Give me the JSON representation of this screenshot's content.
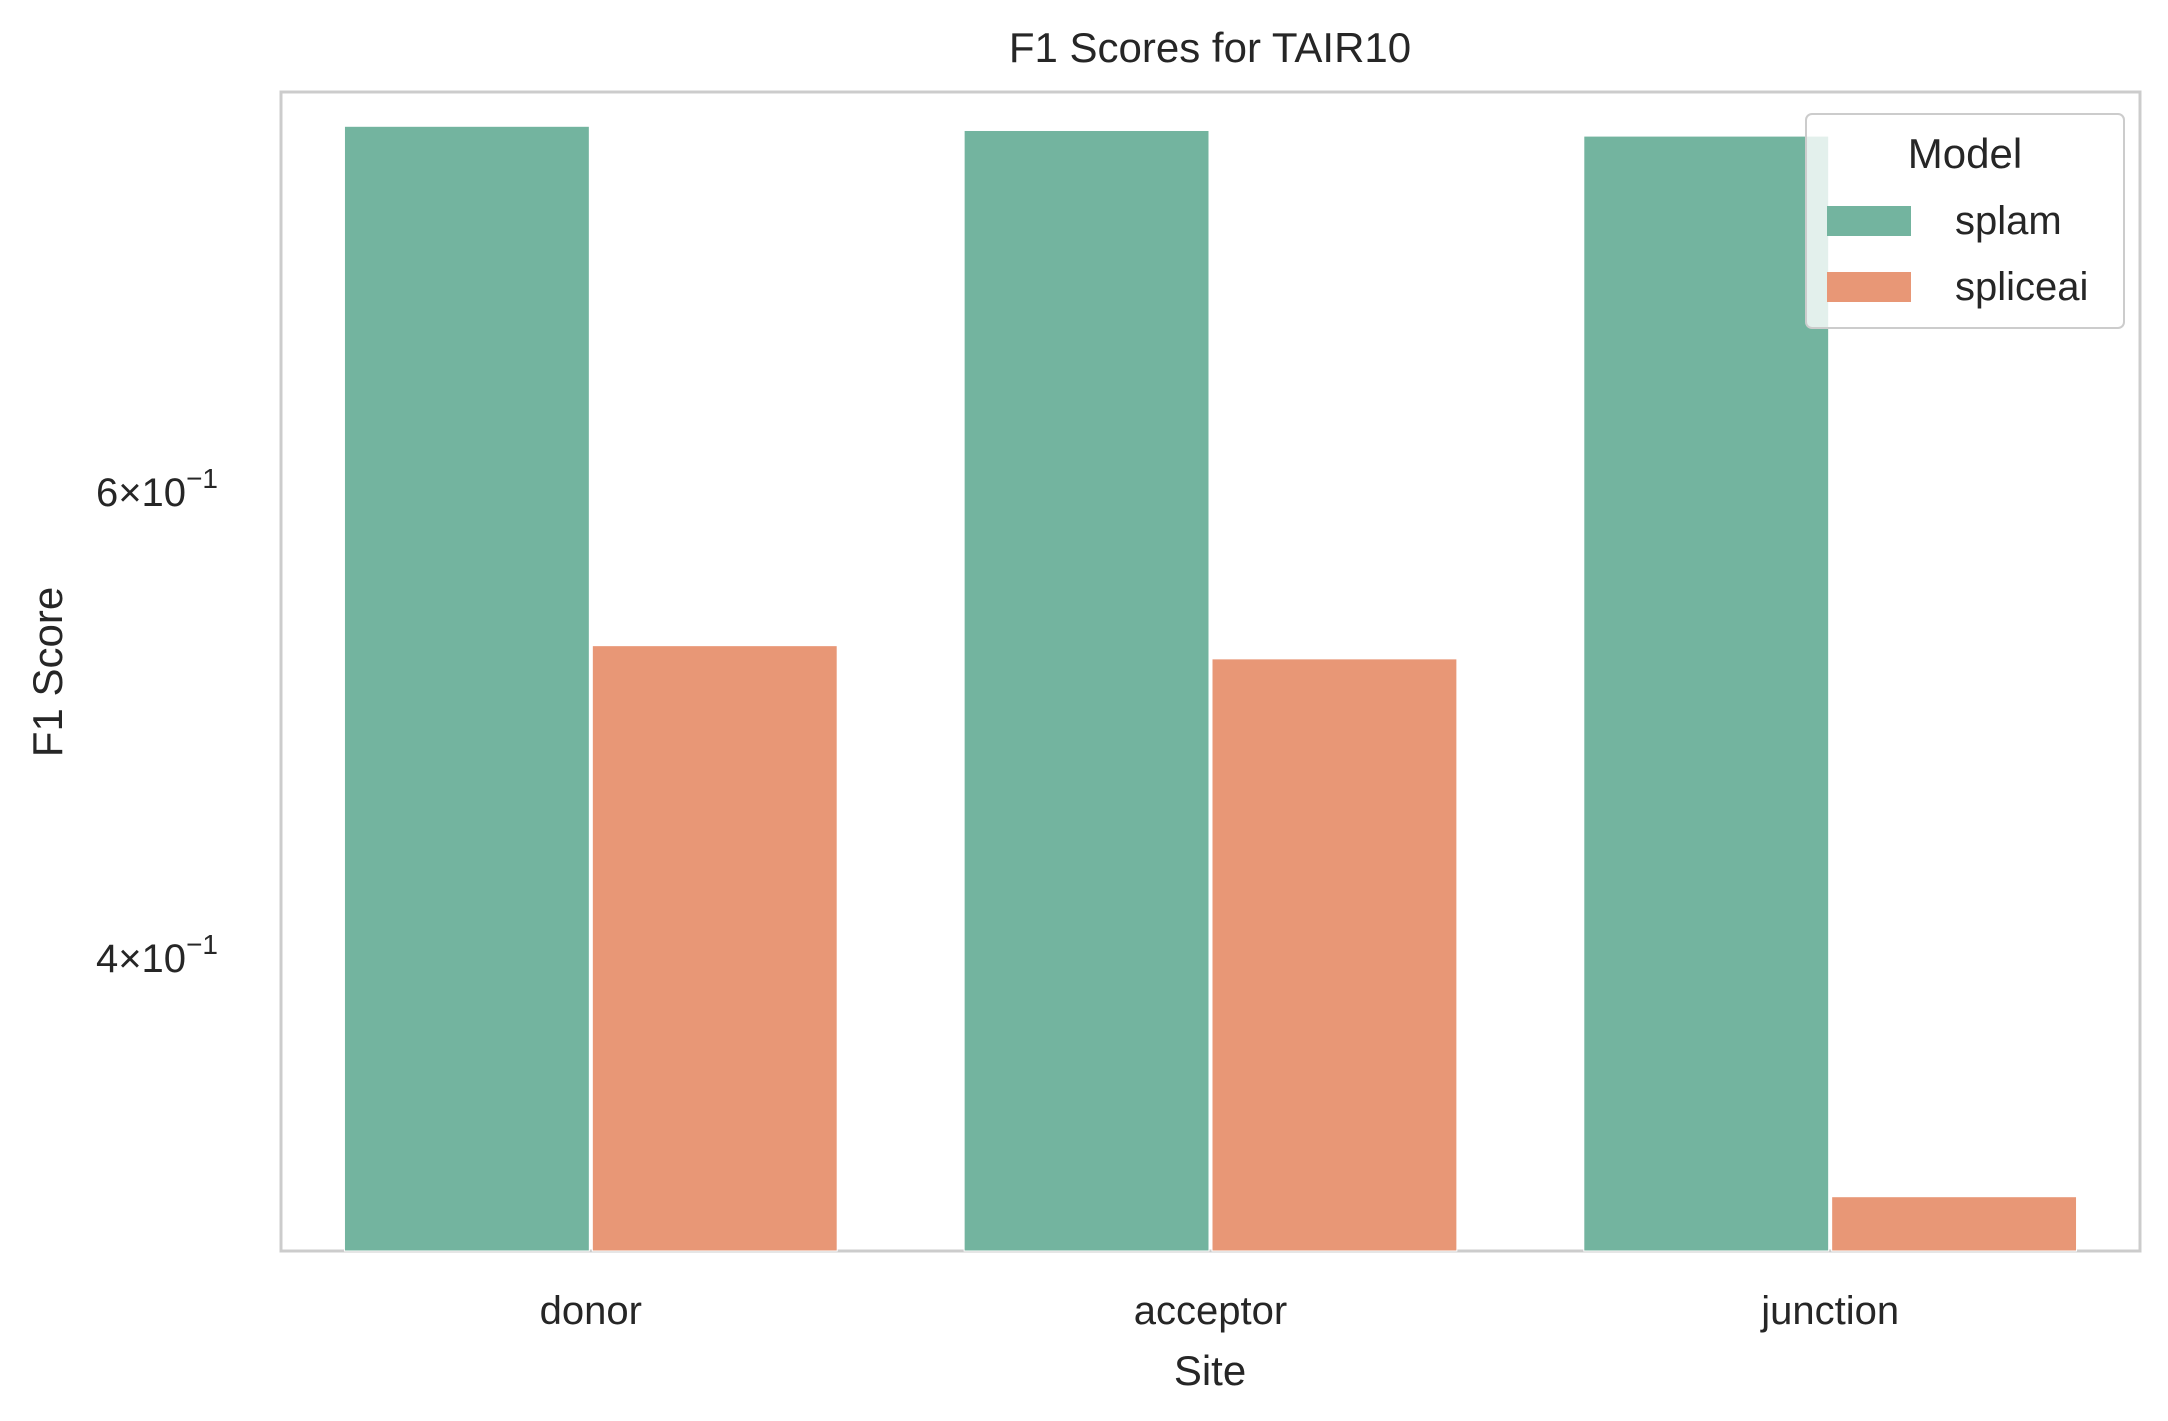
{
  "chart_data": {
    "type": "bar",
    "title": "F1 Scores for TAIR10",
    "xlabel": "Site",
    "ylabel": "F1 Score",
    "y_scale": "log",
    "ylim": [
      0.31,
      0.85
    ],
    "yticks": [
      {
        "value": 0.6,
        "mantissa": "6",
        "exponent": "−1"
      },
      {
        "value": 0.4,
        "mantissa": "4",
        "exponent": "−1"
      }
    ],
    "categories": [
      "donor",
      "acceptor",
      "junction"
    ],
    "series": [
      {
        "name": "splam",
        "color": "#73b49f",
        "values": [
          0.825,
          0.822,
          0.818
        ]
      },
      {
        "name": "spliceai",
        "color": "#e89776",
        "values": [
          0.525,
          0.519,
          0.325
        ]
      }
    ],
    "grid": false,
    "legend": {
      "title": "Model",
      "placement": "top-right"
    }
  }
}
